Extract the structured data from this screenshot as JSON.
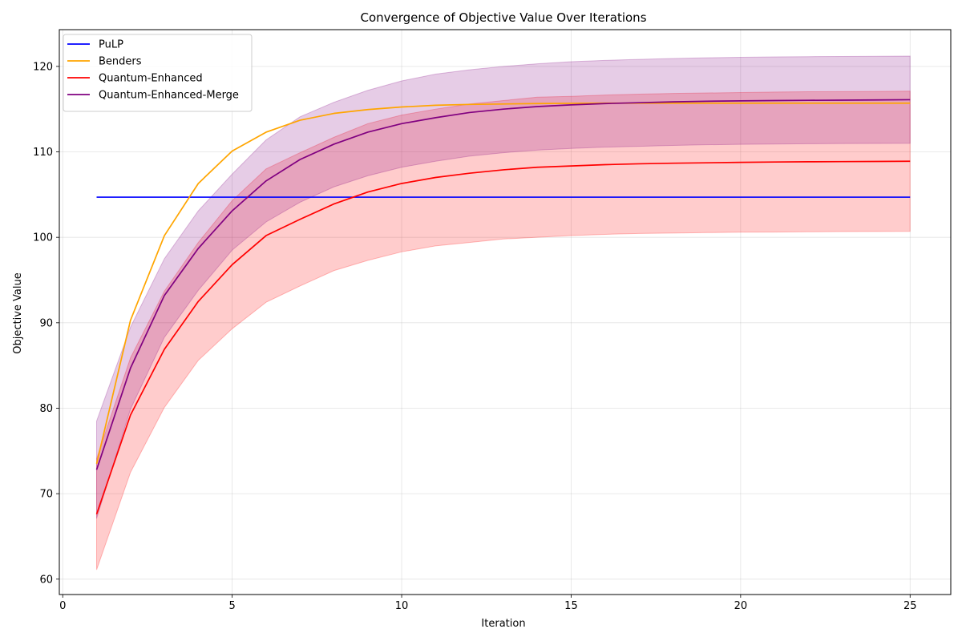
{
  "chart_data": {
    "type": "line",
    "title": "Convergence of Objective Value Over Iterations",
    "xlabel": "Iteration",
    "ylabel": "Objective Value",
    "xlim": [
      -0.1,
      26.2
    ],
    "ylim": [
      58.2,
      124.3
    ],
    "xticks": [
      0,
      5,
      10,
      15,
      20,
      25
    ],
    "yticks": [
      60,
      70,
      80,
      90,
      100,
      110,
      120
    ],
    "grid": true,
    "legend_position": "top-left",
    "x": [
      1,
      2,
      3,
      4,
      5,
      6,
      7,
      8,
      9,
      10,
      11,
      12,
      13,
      14,
      15,
      16,
      17,
      18,
      19,
      20,
      21,
      22,
      23,
      24,
      25
    ],
    "series": [
      {
        "name": "PuLP",
        "color": "#0000ff",
        "values": [
          104.7,
          104.7,
          104.7,
          104.7,
          104.7,
          104.7,
          104.7,
          104.7,
          104.7,
          104.7,
          104.7,
          104.7,
          104.7,
          104.7,
          104.7,
          104.7,
          104.7,
          104.7,
          104.7,
          104.7,
          104.7,
          104.7,
          104.7,
          104.7,
          104.7
        ]
      },
      {
        "name": "Benders",
        "color": "#ffa500",
        "values": [
          73.5,
          90.3,
          100.2,
          106.3,
          110.1,
          112.3,
          113.7,
          114.5,
          114.95,
          115.25,
          115.45,
          115.55,
          115.6,
          115.65,
          115.68,
          115.7,
          115.7,
          115.7,
          115.7,
          115.7,
          115.7,
          115.7,
          115.7,
          115.7,
          115.7
        ]
      },
      {
        "name": "Quantum-Enhanced",
        "color": "#ff0000",
        "fill": "#ff0000",
        "fill_opacity": 0.2,
        "values": [
          67.6,
          79.2,
          86.9,
          92.5,
          96.8,
          100.2,
          102.1,
          103.9,
          105.3,
          106.3,
          107.0,
          107.5,
          107.9,
          108.2,
          108.35,
          108.5,
          108.6,
          108.67,
          108.72,
          108.77,
          108.81,
          108.84,
          108.86,
          108.88,
          108.9
        ],
        "lower": [
          61.1,
          72.5,
          80.1,
          85.6,
          89.3,
          92.4,
          94.3,
          96.1,
          97.3,
          98.3,
          99.0,
          99.4,
          99.8,
          100.0,
          100.2,
          100.35,
          100.45,
          100.5,
          100.55,
          100.6,
          100.62,
          100.65,
          100.67,
          100.69,
          100.7
        ],
        "upper": [
          74.1,
          85.9,
          93.7,
          99.4,
          104.3,
          108.0,
          109.9,
          111.7,
          113.3,
          114.3,
          115.0,
          115.6,
          116.0,
          116.4,
          116.5,
          116.65,
          116.75,
          116.84,
          116.89,
          116.94,
          117.0,
          117.03,
          117.05,
          117.07,
          117.1
        ]
      },
      {
        "name": "Quantum-Enhanced-Merge",
        "color": "#800080",
        "fill": "#800080",
        "fill_opacity": 0.2,
        "values": [
          72.8,
          84.7,
          93.2,
          98.7,
          103.1,
          106.6,
          109.1,
          110.9,
          112.3,
          113.3,
          114.0,
          114.6,
          115.0,
          115.3,
          115.5,
          115.65,
          115.75,
          115.85,
          115.92,
          115.97,
          116.0,
          116.03,
          116.05,
          116.07,
          116.1
        ],
        "lower": [
          67.1,
          79.9,
          88.3,
          93.8,
          98.5,
          101.8,
          104.1,
          105.9,
          107.2,
          108.2,
          108.9,
          109.5,
          109.9,
          110.2,
          110.4,
          110.55,
          110.65,
          110.75,
          110.83,
          110.88,
          110.92,
          110.95,
          110.97,
          110.99,
          111.0
        ],
        "upper": [
          78.5,
          89.5,
          97.5,
          103.1,
          107.4,
          111.4,
          114.1,
          115.8,
          117.2,
          118.3,
          119.1,
          119.6,
          120.0,
          120.3,
          120.55,
          120.7,
          120.82,
          120.93,
          121.01,
          121.07,
          121.11,
          121.14,
          121.16,
          121.18,
          121.2
        ]
      }
    ]
  }
}
